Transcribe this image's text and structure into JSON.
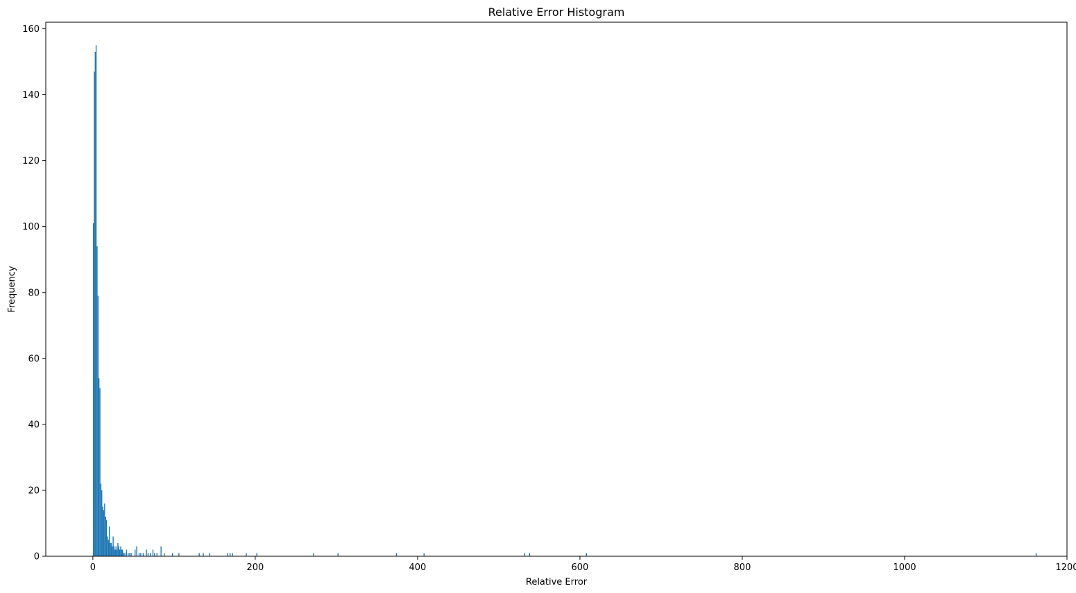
{
  "chart_data": {
    "type": "bar",
    "title": "Relative Error Histogram",
    "xlabel": "Relative Error",
    "ylabel": "Frequency",
    "xlim": [
      -58,
      1200
    ],
    "ylim": [
      0,
      162
    ],
    "x_ticks": [
      0,
      200,
      400,
      600,
      800,
      1000,
      1200
    ],
    "x_tick_labels": [
      "0",
      "200",
      "400",
      "600",
      "800",
      "1000",
      "1200"
    ],
    "y_ticks": [
      0,
      20,
      40,
      60,
      80,
      100,
      120,
      140,
      160
    ],
    "y_tick_labels": [
      "0",
      "20",
      "40",
      "60",
      "80",
      "100",
      "120",
      "140",
      "160"
    ],
    "bin_width": 1.16,
    "bar_color": "#1f77b4",
    "bins": [
      {
        "x": 0.6,
        "count": 101
      },
      {
        "x": 1.7,
        "count": 147
      },
      {
        "x": 2.9,
        "count": 153
      },
      {
        "x": 4.0,
        "count": 155
      },
      {
        "x": 5.2,
        "count": 94
      },
      {
        "x": 6.4,
        "count": 79
      },
      {
        "x": 7.5,
        "count": 54
      },
      {
        "x": 8.7,
        "count": 51
      },
      {
        "x": 9.9,
        "count": 22
      },
      {
        "x": 11.0,
        "count": 20
      },
      {
        "x": 12.2,
        "count": 15
      },
      {
        "x": 13.3,
        "count": 14
      },
      {
        "x": 14.5,
        "count": 16
      },
      {
        "x": 15.7,
        "count": 12
      },
      {
        "x": 16.8,
        "count": 11
      },
      {
        "x": 18.0,
        "count": 6
      },
      {
        "x": 19.2,
        "count": 5
      },
      {
        "x": 20.3,
        "count": 9
      },
      {
        "x": 21.5,
        "count": 4
      },
      {
        "x": 22.6,
        "count": 4
      },
      {
        "x": 23.8,
        "count": 3
      },
      {
        "x": 25.0,
        "count": 6
      },
      {
        "x": 26.1,
        "count": 3
      },
      {
        "x": 27.3,
        "count": 2
      },
      {
        "x": 28.5,
        "count": 3
      },
      {
        "x": 29.6,
        "count": 2
      },
      {
        "x": 30.8,
        "count": 4
      },
      {
        "x": 31.9,
        "count": 3
      },
      {
        "x": 33.1,
        "count": 2
      },
      {
        "x": 34.3,
        "count": 3
      },
      {
        "x": 35.4,
        "count": 2
      },
      {
        "x": 36.6,
        "count": 2
      },
      {
        "x": 37.8,
        "count": 1
      },
      {
        "x": 39.4,
        "count": 1
      },
      {
        "x": 41.5,
        "count": 2
      },
      {
        "x": 43.5,
        "count": 1
      },
      {
        "x": 45.4,
        "count": 1
      },
      {
        "x": 47.2,
        "count": 1
      },
      {
        "x": 52.0,
        "count": 2
      },
      {
        "x": 54.0,
        "count": 3
      },
      {
        "x": 57.0,
        "count": 1
      },
      {
        "x": 59.0,
        "count": 1
      },
      {
        "x": 62.0,
        "count": 1
      },
      {
        "x": 66.0,
        "count": 2
      },
      {
        "x": 68.0,
        "count": 1
      },
      {
        "x": 71.0,
        "count": 1
      },
      {
        "x": 74.0,
        "count": 2
      },
      {
        "x": 76.0,
        "count": 1
      },
      {
        "x": 79.0,
        "count": 1
      },
      {
        "x": 84.0,
        "count": 3
      },
      {
        "x": 88.0,
        "count": 1
      },
      {
        "x": 98.0,
        "count": 1
      },
      {
        "x": 106.0,
        "count": 1
      },
      {
        "x": 131.0,
        "count": 1
      },
      {
        "x": 136.0,
        "count": 1
      },
      {
        "x": 144.0,
        "count": 1
      },
      {
        "x": 166.0,
        "count": 1
      },
      {
        "x": 169.0,
        "count": 1
      },
      {
        "x": 172.0,
        "count": 1
      },
      {
        "x": 189.0,
        "count": 1
      },
      {
        "x": 202.0,
        "count": 1
      },
      {
        "x": 272.0,
        "count": 1
      },
      {
        "x": 302.0,
        "count": 1
      },
      {
        "x": 374.0,
        "count": 1
      },
      {
        "x": 408.0,
        "count": 1
      },
      {
        "x": 532.0,
        "count": 1
      },
      {
        "x": 538.0,
        "count": 1
      },
      {
        "x": 608.0,
        "count": 1
      },
      {
        "x": 1162.0,
        "count": 1
      }
    ]
  }
}
